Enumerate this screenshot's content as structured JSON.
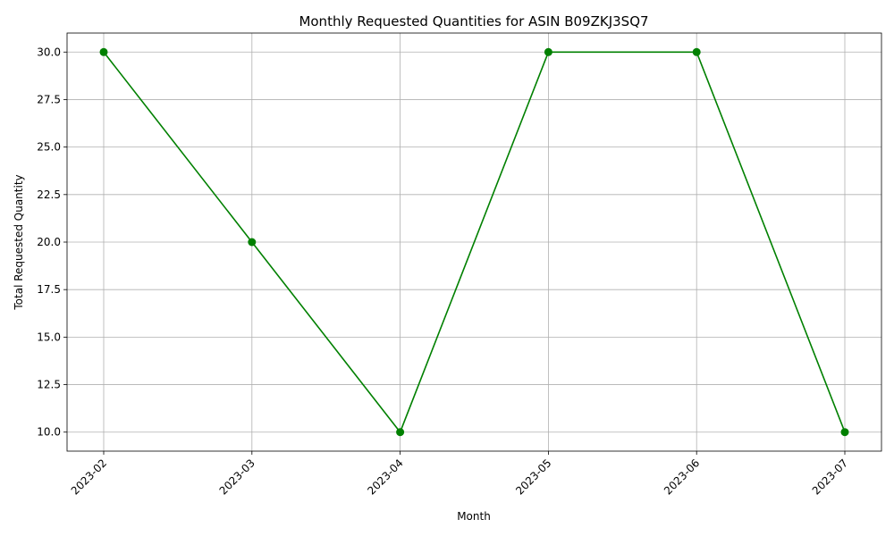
{
  "chart_data": {
    "type": "line",
    "title": "Monthly Requested Quantities for ASIN B09ZKJ3SQ7",
    "xlabel": "Month",
    "ylabel": "Total Requested Quantity",
    "categories": [
      "2023-02",
      "2023-03",
      "2023-04",
      "2023-05",
      "2023-06",
      "2023-07"
    ],
    "series": [
      {
        "values": [
          30,
          20,
          10,
          30,
          30,
          10
        ],
        "color": "#008000",
        "marker": "circle"
      }
    ],
    "ylim": [
      9,
      31
    ],
    "yticks": [
      "10.0",
      "12.5",
      "15.0",
      "17.5",
      "20.0",
      "22.5",
      "25.0",
      "27.5",
      "30.0"
    ],
    "x_tick_rotation": 45,
    "grid": true
  }
}
